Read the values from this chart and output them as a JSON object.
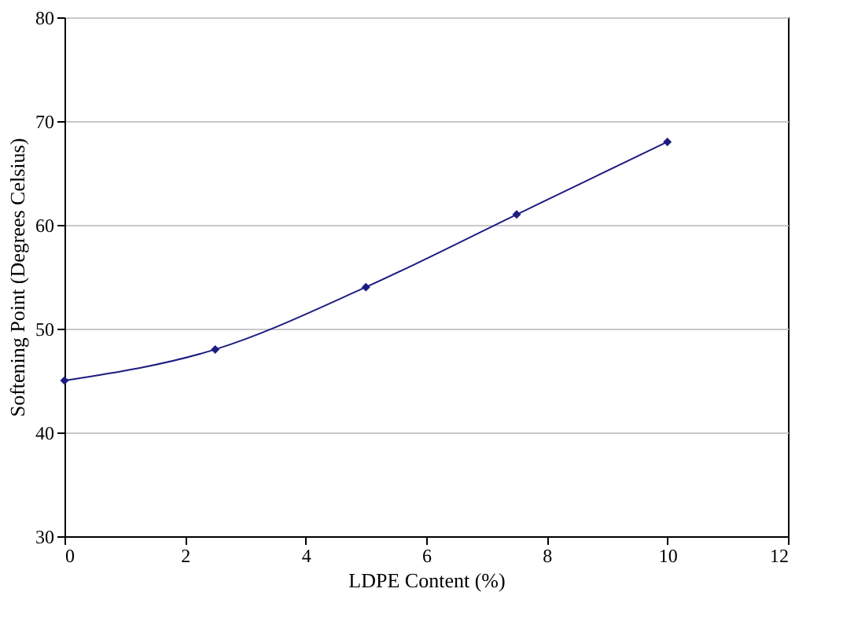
{
  "chart_data": {
    "type": "line",
    "xlabel": "LDPE Content (%)",
    "ylabel": "Softening Point (Degrees Celsius)",
    "x": [
      0,
      2.5,
      5,
      7.5,
      10
    ],
    "series": [
      {
        "color": "#1c1c80",
        "values": [
          45,
          48,
          54,
          61,
          68
        ]
      }
    ],
    "xlim": [
      0,
      12
    ],
    "xticks": [
      0,
      2,
      4,
      6,
      8,
      10,
      12
    ],
    "ylim": [
      30,
      80
    ],
    "yticks": [
      30,
      40,
      50,
      60,
      70,
      80
    ],
    "grid": "y",
    "marker": "diamond",
    "line_style": "solid"
  }
}
